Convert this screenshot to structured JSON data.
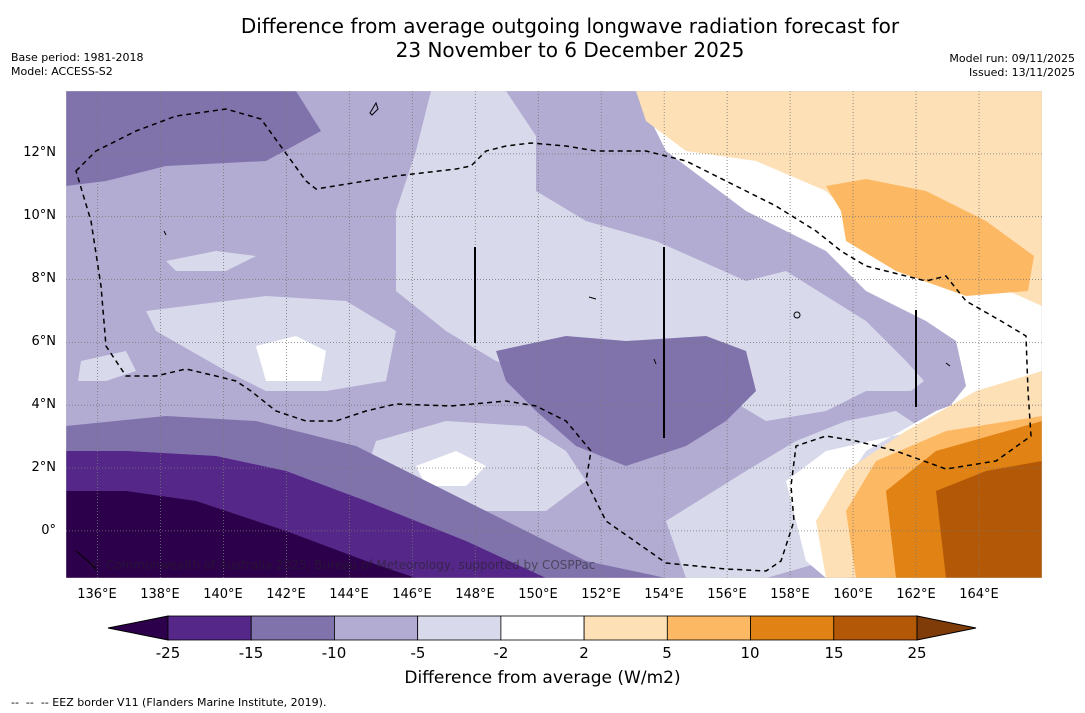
{
  "title": {
    "line1": "Difference from average outgoing longwave radiation forecast for",
    "line2": "23 November to 6 December 2025"
  },
  "meta_left": {
    "base_period": "Base period: 1981-2018",
    "model": "Model: ACCESS-S2"
  },
  "meta_right": {
    "model_run": "Model run: 09/11/2025",
    "issued": "Issued: 13/11/2025"
  },
  "map": {
    "lat_labels": [
      "12°N",
      "10°N",
      "8°N",
      "6°N",
      "4°N",
      "2°N",
      "0°"
    ],
    "lon_labels": [
      "136°E",
      "138°E",
      "140°E",
      "142°E",
      "144°E",
      "146°E",
      "148°E",
      "150°E",
      "152°E",
      "154°E",
      "156°E",
      "158°E",
      "160°E",
      "162°E",
      "164°E"
    ],
    "lat_range": [
      -1.5,
      14
    ],
    "lon_range": [
      135,
      166
    ],
    "copyright": "© Commonwealth of Australia 2025, Bureau of Meteorology, supported by COSPPac"
  },
  "colorbar": {
    "ticks": [
      "-25",
      "-15",
      "-10",
      "-5",
      "-2",
      "2",
      "5",
      "10",
      "15",
      "25"
    ],
    "colors": [
      "#2d004b",
      "#542788",
      "#8073ac",
      "#b2abd2",
      "#d8daeb",
      "#ffffff",
      "#fee0b6",
      "#fdb863",
      "#e08214",
      "#b35806",
      "#7f3b08"
    ],
    "title": "Difference from average (W/m2)"
  },
  "footnote": "--  --  -- EEZ border V11 (Flanders Marine Institute, 2019)."
}
